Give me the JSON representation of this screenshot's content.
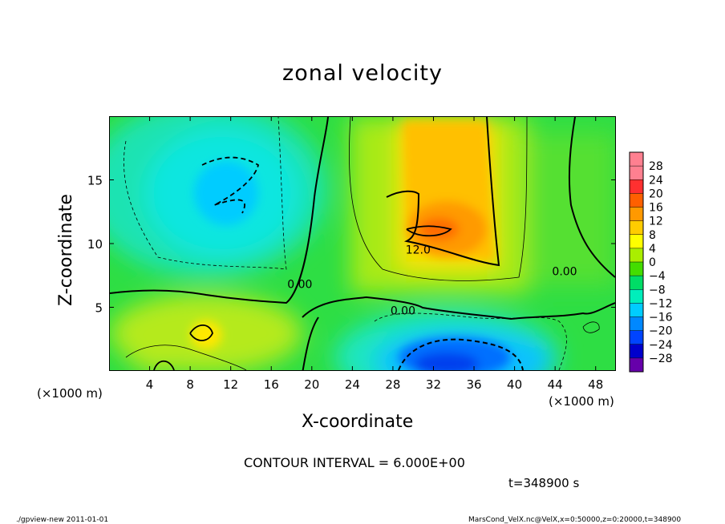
{
  "title": "zonal velocity",
  "chart_data": {
    "type": "heatmap",
    "title": "zonal velocity",
    "xlabel": "X-coordinate",
    "ylabel": "Z-coordinate",
    "x_unit": "(×1000 m)",
    "y_unit": "(×1000 m)",
    "xlim": [
      0,
      50
    ],
    "ylim": [
      0,
      20
    ],
    "xticks": [
      4,
      8,
      12,
      16,
      20,
      24,
      28,
      32,
      36,
      40,
      44,
      48
    ],
    "yticks": [
      5,
      10,
      15
    ],
    "colorbar": {
      "levels": [
        28,
        24,
        20,
        16,
        12,
        8,
        4,
        0,
        -4,
        -8,
        -12,
        -16,
        -20,
        -24,
        -28
      ],
      "colors": [
        "#ff8090",
        "#ff3030",
        "#ff6000",
        "#ff9900",
        "#ffcc00",
        "#ffff00",
        "#aaee00",
        "#44dd00",
        "#00dd66",
        "#00eebb",
        "#00ccff",
        "#0088ff",
        "#0044ff",
        "#0000cc",
        "#6600aa"
      ]
    },
    "contour_labels": [
      {
        "text": "12.0",
        "x": 30.5,
        "z": 9.2
      },
      {
        "text": "0.00",
        "x": 18.8,
        "z": 6.5
      },
      {
        "text": "0.00",
        "x": 29.0,
        "z": 4.4
      },
      {
        "text": "0.00",
        "x": 45.0,
        "z": 7.5
      }
    ]
  },
  "contour_interval": "CONTOUR INTERVAL = 6.000E+00",
  "time_label": "t=348900 s",
  "footer_left": "./gpview-new   2011-01-01",
  "footer_right": "MarsCond_VelX.nc@VelX,x=0:50000,z=0:20000,t=348900",
  "colors": {
    "background": "#00dd55"
  }
}
